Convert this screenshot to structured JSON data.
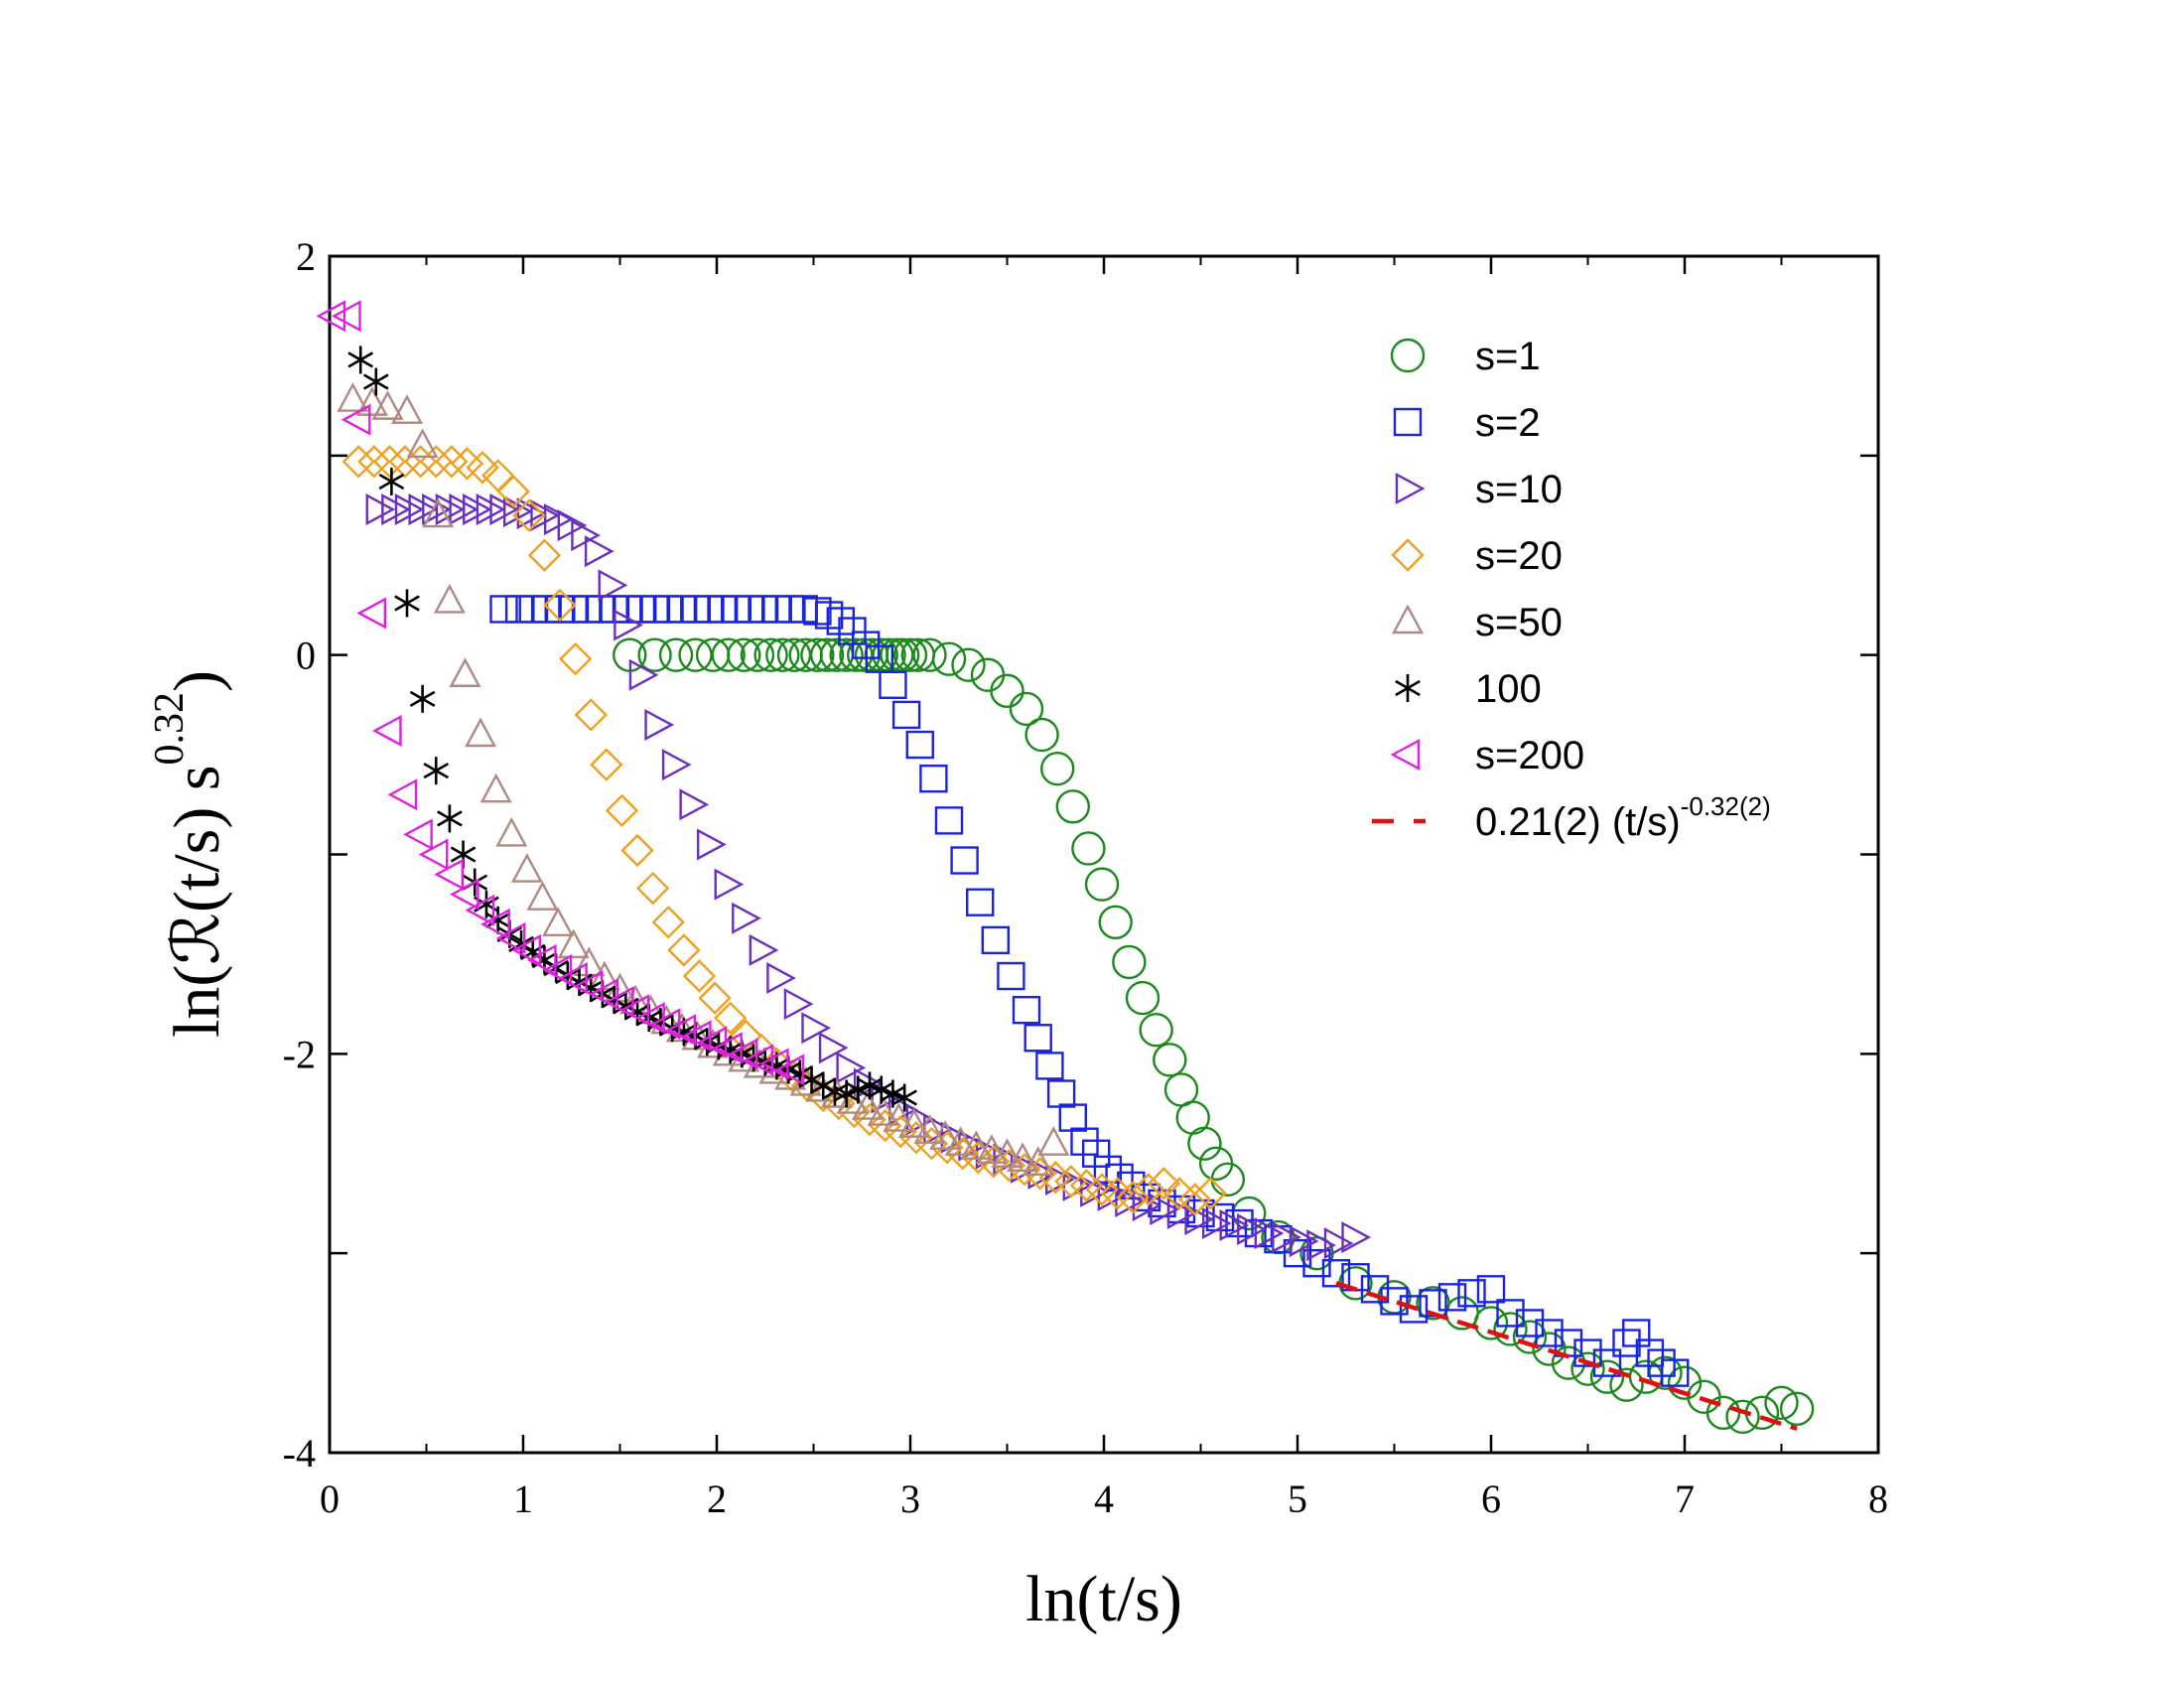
{
  "chart_data": {
    "type": "scatter",
    "xlabel": "ln(t/s)",
    "ylabel": {
      "prefix": "ln(",
      "symbol": "ℛ",
      "middle": "(t/s) s",
      "exponent": "0.32",
      "suffix": ")"
    },
    "xlim": [
      0,
      8
    ],
    "ylim": [
      -4,
      2
    ],
    "xticks": [
      0,
      1,
      2,
      3,
      4,
      5,
      6,
      7,
      8
    ],
    "xtick_labels": [
      "0",
      "1",
      "2",
      "3",
      "4",
      "5",
      "6",
      "7",
      "8"
    ],
    "yticks": [
      -4,
      -2,
      0,
      2
    ],
    "ytick_labels": [
      "-4",
      "-2",
      "0",
      "2"
    ],
    "legend_position": "top-right",
    "series": [
      {
        "name": "s=1",
        "marker": "circle",
        "color": "#1a8a1a",
        "x": [
          1.55,
          1.68,
          1.79,
          1.89,
          1.98,
          2.06,
          2.14,
          2.21,
          2.28,
          2.34,
          2.4,
          2.46,
          2.52,
          2.57,
          2.62,
          2.67,
          2.72,
          2.76,
          2.8,
          2.85,
          2.89,
          2.93,
          2.96,
          3.0,
          3.04,
          3.1,
          3.2,
          3.3,
          3.4,
          3.5,
          3.6,
          3.68,
          3.76,
          3.84,
          3.92,
          3.99,
          4.06,
          4.13,
          4.2,
          4.27,
          4.34,
          4.4,
          4.46,
          4.52,
          4.58,
          4.64,
          4.75,
          4.9,
          5.1,
          5.3,
          5.5,
          5.7,
          5.85,
          6.0,
          6.1,
          6.2,
          6.3,
          6.4,
          6.5,
          6.6,
          6.7,
          6.8,
          6.9,
          7.0,
          7.1,
          7.2,
          7.3,
          7.4,
          7.5,
          7.58
        ],
        "y": [
          0.0,
          0.0,
          0.0,
          0.0,
          0.0,
          0.0,
          0.0,
          0.0,
          0.0,
          0.0,
          0.0,
          0.0,
          0.0,
          0.0,
          0.0,
          0.0,
          0.0,
          0.0,
          0.0,
          0.0,
          0.0,
          0.0,
          0.0,
          0.0,
          0.0,
          0.0,
          -0.02,
          -0.05,
          -0.1,
          -0.18,
          -0.27,
          -0.4,
          -0.57,
          -0.76,
          -0.97,
          -1.15,
          -1.34,
          -1.54,
          -1.72,
          -1.88,
          -2.03,
          -2.18,
          -2.32,
          -2.45,
          -2.55,
          -2.63,
          -2.8,
          -2.92,
          -3.0,
          -3.15,
          -3.22,
          -3.25,
          -3.3,
          -3.35,
          -3.38,
          -3.42,
          -3.48,
          -3.55,
          -3.58,
          -3.62,
          -3.66,
          -3.62,
          -3.6,
          -3.65,
          -3.72,
          -3.8,
          -3.82,
          -3.8,
          -3.75,
          -3.78
        ]
      },
      {
        "name": "s=2",
        "marker": "square",
        "color": "#1a24e0",
        "x": [
          0.9,
          0.98,
          1.05,
          1.12,
          1.19,
          1.26,
          1.33,
          1.4,
          1.47,
          1.54,
          1.61,
          1.68,
          1.75,
          1.82,
          1.89,
          1.96,
          2.03,
          2.1,
          2.17,
          2.24,
          2.31,
          2.38,
          2.45,
          2.52,
          2.58,
          2.64,
          2.7,
          2.77,
          2.84,
          2.91,
          2.98,
          3.05,
          3.12,
          3.2,
          3.28,
          3.36,
          3.44,
          3.52,
          3.6,
          3.66,
          3.72,
          3.78,
          3.84,
          3.9,
          3.96,
          4.02,
          4.08,
          4.14,
          4.22,
          4.3,
          4.4,
          4.5,
          4.6,
          4.7,
          4.8,
          4.9,
          5.0,
          5.1,
          5.2,
          5.3,
          5.4,
          5.5,
          5.6,
          5.7,
          5.8,
          5.9,
          6.0,
          6.1,
          6.2,
          6.3,
          6.4,
          6.5,
          6.6,
          6.7,
          6.75,
          6.82,
          6.88,
          6.95
        ],
        "y": [
          0.23,
          0.23,
          0.23,
          0.23,
          0.23,
          0.23,
          0.23,
          0.23,
          0.23,
          0.23,
          0.23,
          0.23,
          0.23,
          0.23,
          0.23,
          0.23,
          0.23,
          0.23,
          0.23,
          0.23,
          0.23,
          0.23,
          0.23,
          0.22,
          0.2,
          0.17,
          0.12,
          0.05,
          -0.02,
          -0.15,
          -0.3,
          -0.45,
          -0.62,
          -0.83,
          -1.03,
          -1.24,
          -1.43,
          -1.61,
          -1.78,
          -1.92,
          -2.06,
          -2.2,
          -2.32,
          -2.44,
          -2.5,
          -2.58,
          -2.62,
          -2.66,
          -2.72,
          -2.75,
          -2.78,
          -2.8,
          -2.82,
          -2.85,
          -2.9,
          -2.93,
          -3.0,
          -3.05,
          -3.1,
          -3.12,
          -3.18,
          -3.24,
          -3.28,
          -3.25,
          -3.22,
          -3.2,
          -3.18,
          -3.3,
          -3.35,
          -3.4,
          -3.45,
          -3.5,
          -3.55,
          -3.45,
          -3.4,
          -3.5,
          -3.55,
          -3.6
        ]
      },
      {
        "name": "s=10",
        "marker": "triangle-right",
        "color": "#6a2fbf",
        "x": [
          0.25,
          0.33,
          0.4,
          0.47,
          0.54,
          0.61,
          0.68,
          0.75,
          0.82,
          0.89,
          0.96,
          1.03,
          1.1,
          1.17,
          1.24,
          1.31,
          1.38,
          1.45,
          1.53,
          1.61,
          1.69,
          1.78,
          1.87,
          1.96,
          2.05,
          2.14,
          2.23,
          2.32,
          2.41,
          2.5,
          2.59,
          2.68,
          2.77,
          2.86,
          2.95,
          3.04,
          3.13,
          3.22,
          3.31,
          3.4,
          3.49,
          3.58,
          3.67,
          3.76,
          3.85,
          3.94,
          4.03,
          4.12,
          4.21,
          4.3,
          4.39,
          4.48,
          4.57,
          4.66,
          4.75,
          4.84,
          4.93,
          5.02,
          5.11,
          5.2,
          5.29
        ],
        "y": [
          0.73,
          0.73,
          0.73,
          0.73,
          0.73,
          0.73,
          0.73,
          0.73,
          0.73,
          0.73,
          0.72,
          0.71,
          0.7,
          0.68,
          0.65,
          0.6,
          0.52,
          0.35,
          0.15,
          -0.1,
          -0.35,
          -0.55,
          -0.75,
          -0.95,
          -1.15,
          -1.32,
          -1.48,
          -1.62,
          -1.75,
          -1.87,
          -1.97,
          -2.07,
          -2.15,
          -2.22,
          -2.28,
          -2.33,
          -2.38,
          -2.42,
          -2.46,
          -2.5,
          -2.53,
          -2.57,
          -2.6,
          -2.63,
          -2.66,
          -2.69,
          -2.71,
          -2.74,
          -2.76,
          -2.78,
          -2.8,
          -2.83,
          -2.85,
          -2.86,
          -2.88,
          -2.9,
          -2.92,
          -2.94,
          -2.96,
          -2.95,
          -2.92
        ]
      },
      {
        "name": "s=20",
        "marker": "diamond",
        "color": "#f0a020",
        "x": [
          0.15,
          0.23,
          0.31,
          0.39,
          0.47,
          0.55,
          0.63,
          0.71,
          0.79,
          0.87,
          0.95,
          1.03,
          1.11,
          1.19,
          1.27,
          1.35,
          1.43,
          1.51,
          1.59,
          1.67,
          1.75,
          1.83,
          1.91,
          1.99,
          2.07,
          2.15,
          2.23,
          2.31,
          2.39,
          2.47,
          2.55,
          2.63,
          2.71,
          2.79,
          2.87,
          2.95,
          3.03,
          3.11,
          3.19,
          3.27,
          3.35,
          3.43,
          3.51,
          3.59,
          3.67,
          3.75,
          3.83,
          3.91,
          3.99,
          4.07,
          4.15,
          4.23,
          4.31,
          4.39,
          4.47,
          4.55
        ],
        "y": [
          0.97,
          0.97,
          0.97,
          0.97,
          0.97,
          0.97,
          0.97,
          0.96,
          0.94,
          0.9,
          0.82,
          0.7,
          0.5,
          0.25,
          -0.02,
          -0.3,
          -0.55,
          -0.78,
          -0.98,
          -1.17,
          -1.34,
          -1.48,
          -1.61,
          -1.72,
          -1.82,
          -1.91,
          -1.98,
          -2.05,
          -2.11,
          -2.16,
          -2.21,
          -2.25,
          -2.29,
          -2.33,
          -2.36,
          -2.39,
          -2.42,
          -2.45,
          -2.47,
          -2.5,
          -2.52,
          -2.54,
          -2.56,
          -2.58,
          -2.6,
          -2.62,
          -2.64,
          -2.66,
          -2.68,
          -2.7,
          -2.72,
          -2.68,
          -2.65,
          -2.7,
          -2.73,
          -2.7
        ]
      },
      {
        "name": "s=50",
        "marker": "triangle-up",
        "color": "#b08a82",
        "x": [
          0.12,
          0.22,
          0.3,
          0.4,
          0.48,
          0.56,
          0.62,
          0.7,
          0.78,
          0.86,
          0.94,
          1.02,
          1.1,
          1.18,
          1.26,
          1.34,
          1.42,
          1.5,
          1.58,
          1.66,
          1.74,
          1.82,
          1.9,
          1.98,
          2.06,
          2.14,
          2.22,
          2.3,
          2.38,
          2.46,
          2.54,
          2.62,
          2.7,
          2.78,
          2.86,
          2.94,
          3.02,
          3.1,
          3.18,
          3.26,
          3.34,
          3.42,
          3.5,
          3.58,
          3.66,
          3.74
        ],
        "y": [
          1.28,
          1.26,
          1.24,
          1.22,
          1.05,
          0.7,
          0.27,
          -0.1,
          -0.4,
          -0.68,
          -0.9,
          -1.08,
          -1.22,
          -1.35,
          -1.46,
          -1.55,
          -1.62,
          -1.68,
          -1.74,
          -1.79,
          -1.84,
          -1.88,
          -1.92,
          -1.96,
          -2.0,
          -2.03,
          -2.06,
          -2.09,
          -2.12,
          -2.15,
          -2.18,
          -2.21,
          -2.24,
          -2.27,
          -2.3,
          -2.33,
          -2.36,
          -2.39,
          -2.42,
          -2.45,
          -2.47,
          -2.49,
          -2.51,
          -2.53,
          -2.55,
          -2.45
        ]
      },
      {
        "name": "100",
        "marker": "asterisk",
        "color": "#000000",
        "x": [
          0.16,
          0.24,
          0.32,
          0.4,
          0.48,
          0.55,
          0.62,
          0.69,
          0.75,
          0.81,
          0.87,
          0.93,
          0.99,
          1.05,
          1.11,
          1.17,
          1.23,
          1.29,
          1.35,
          1.41,
          1.47,
          1.53,
          1.59,
          1.65,
          1.71,
          1.77,
          1.83,
          1.89,
          1.95,
          2.01,
          2.07,
          2.13,
          2.19,
          2.25,
          2.31,
          2.37,
          2.43,
          2.49,
          2.55,
          2.61,
          2.67,
          2.73,
          2.79,
          2.85,
          2.91,
          2.97
        ],
        "y": [
          1.48,
          1.37,
          0.87,
          0.26,
          -0.22,
          -0.58,
          -0.82,
          -1.0,
          -1.14,
          -1.25,
          -1.33,
          -1.4,
          -1.45,
          -1.49,
          -1.53,
          -1.57,
          -1.61,
          -1.64,
          -1.67,
          -1.7,
          -1.73,
          -1.76,
          -1.79,
          -1.82,
          -1.84,
          -1.87,
          -1.89,
          -1.91,
          -1.94,
          -1.96,
          -1.98,
          -2.0,
          -2.02,
          -2.04,
          -2.06,
          -2.08,
          -2.1,
          -2.13,
          -2.16,
          -2.19,
          -2.2,
          -2.18,
          -2.16,
          -2.18,
          -2.2,
          -2.22
        ]
      },
      {
        "name": "s=200",
        "marker": "triangle-left",
        "color": "#e020e0",
        "x": [
          0.02,
          0.1,
          0.15,
          0.23,
          0.31,
          0.39,
          0.47,
          0.55,
          0.63,
          0.71,
          0.79,
          0.87,
          0.95,
          1.03,
          1.11,
          1.19,
          1.27,
          1.35,
          1.43,
          1.51,
          1.59,
          1.67,
          1.75,
          1.83,
          1.91,
          1.99,
          2.07,
          2.15,
          2.23,
          2.31,
          2.39
        ],
        "y": [
          1.7,
          1.7,
          1.18,
          0.21,
          -0.38,
          -0.7,
          -0.9,
          -1.0,
          -1.1,
          -1.2,
          -1.28,
          -1.35,
          -1.42,
          -1.48,
          -1.53,
          -1.58,
          -1.62,
          -1.66,
          -1.7,
          -1.74,
          -1.78,
          -1.82,
          -1.85,
          -1.88,
          -1.91,
          -1.94,
          -1.97,
          -2.0,
          -2.03,
          -2.05,
          -2.08
        ]
      },
      {
        "name": "0.21(2) (t/s)",
        "name_exponent": "-0.32(2)",
        "marker": "dashed-line",
        "color": "#e01010",
        "x": [
          5.2,
          7.58
        ],
        "y": [
          -3.15,
          -3.88
        ]
      }
    ]
  }
}
